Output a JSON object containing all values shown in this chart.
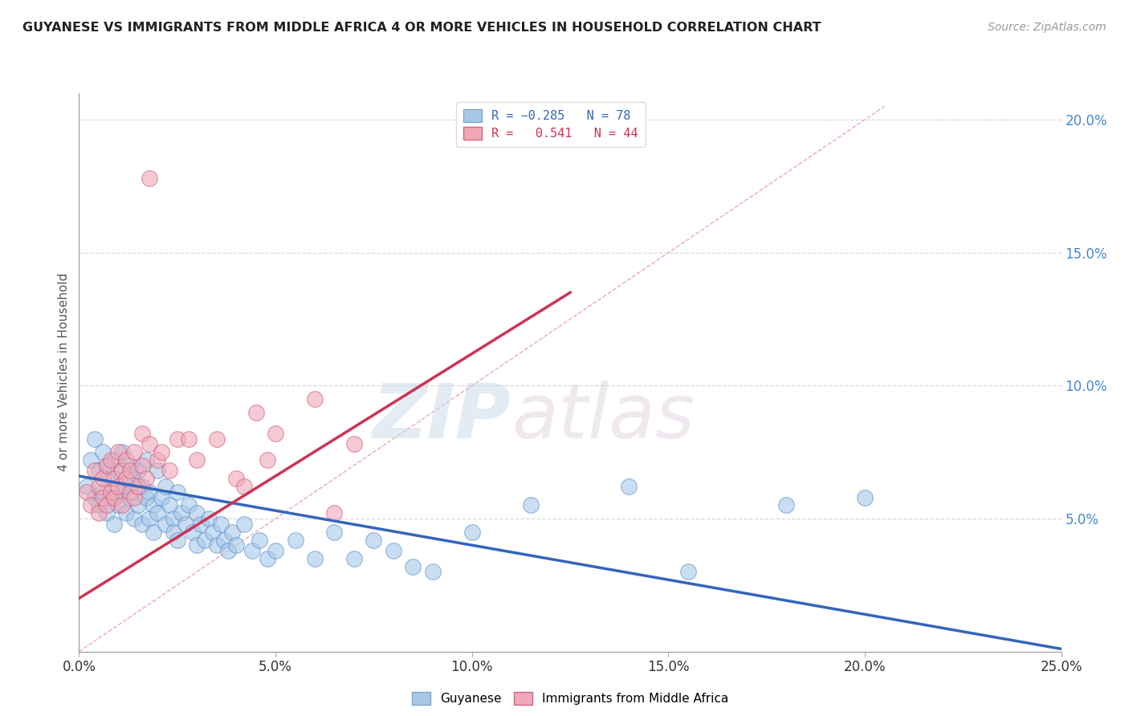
{
  "title": "GUYANESE VS IMMIGRANTS FROM MIDDLE AFRICA 4 OR MORE VEHICLES IN HOUSEHOLD CORRELATION CHART",
  "source": "Source: ZipAtlas.com",
  "ylabel": "4 or more Vehicles in Household",
  "xlim": [
    0.0,
    0.25
  ],
  "ylim": [
    0.0,
    0.21
  ],
  "xticks": [
    0.0,
    0.05,
    0.1,
    0.15,
    0.2,
    0.25
  ],
  "xtick_labels": [
    "0.0%",
    "5.0%",
    "10.0%",
    "15.0%",
    "20.0%",
    "25.0%"
  ],
  "yticks_right": [
    0.05,
    0.1,
    0.15,
    0.2
  ],
  "ytick_labels_right": [
    "5.0%",
    "10.0%",
    "15.0%",
    "20.0%"
  ],
  "background_color": "#ffffff",
  "grid_color": "#d0d0d0",
  "blue_color": "#a8c8e8",
  "pink_color": "#f0a8b8",
  "blue_edge_color": "#5588cc",
  "pink_edge_color": "#d05070",
  "blue_line_color": "#3366bb",
  "pink_line_color": "#cc3355",
  "diagonal_line_color": "#e8a0b0",
  "title_color": "#222222",
  "source_color": "#999999",
  "blue_line": {
    "x": [
      0.0,
      0.25
    ],
    "y": [
      0.066,
      0.001
    ]
  },
  "pink_line": {
    "x": [
      0.0,
      0.125
    ],
    "y": [
      0.02,
      0.135
    ]
  },
  "diagonal_line": {
    "x": [
      0.0,
      0.205
    ],
    "y": [
      0.0,
      0.205
    ]
  },
  "blue_scatter": [
    [
      0.002,
      0.062
    ],
    [
      0.003,
      0.072
    ],
    [
      0.004,
      0.058
    ],
    [
      0.004,
      0.08
    ],
    [
      0.005,
      0.068
    ],
    [
      0.005,
      0.055
    ],
    [
      0.006,
      0.075
    ],
    [
      0.006,
      0.06
    ],
    [
      0.007,
      0.07
    ],
    [
      0.007,
      0.052
    ],
    [
      0.008,
      0.065
    ],
    [
      0.008,
      0.058
    ],
    [
      0.009,
      0.072
    ],
    [
      0.009,
      0.048
    ],
    [
      0.01,
      0.068
    ],
    [
      0.01,
      0.055
    ],
    [
      0.011,
      0.06
    ],
    [
      0.011,
      0.075
    ],
    [
      0.012,
      0.062
    ],
    [
      0.012,
      0.052
    ],
    [
      0.013,
      0.058
    ],
    [
      0.013,
      0.07
    ],
    [
      0.014,
      0.065
    ],
    [
      0.014,
      0.05
    ],
    [
      0.015,
      0.068
    ],
    [
      0.015,
      0.055
    ],
    [
      0.016,
      0.062
    ],
    [
      0.016,
      0.048
    ],
    [
      0.017,
      0.058
    ],
    [
      0.017,
      0.072
    ],
    [
      0.018,
      0.06
    ],
    [
      0.018,
      0.05
    ],
    [
      0.019,
      0.055
    ],
    [
      0.019,
      0.045
    ],
    [
      0.02,
      0.068
    ],
    [
      0.02,
      0.052
    ],
    [
      0.021,
      0.058
    ],
    [
      0.022,
      0.048
    ],
    [
      0.022,
      0.062
    ],
    [
      0.023,
      0.055
    ],
    [
      0.024,
      0.05
    ],
    [
      0.024,
      0.045
    ],
    [
      0.025,
      0.06
    ],
    [
      0.025,
      0.042
    ],
    [
      0.026,
      0.052
    ],
    [
      0.027,
      0.048
    ],
    [
      0.028,
      0.055
    ],
    [
      0.029,
      0.045
    ],
    [
      0.03,
      0.052
    ],
    [
      0.03,
      0.04
    ],
    [
      0.031,
      0.048
    ],
    [
      0.032,
      0.042
    ],
    [
      0.033,
      0.05
    ],
    [
      0.034,
      0.045
    ],
    [
      0.035,
      0.04
    ],
    [
      0.036,
      0.048
    ],
    [
      0.037,
      0.042
    ],
    [
      0.038,
      0.038
    ],
    [
      0.039,
      0.045
    ],
    [
      0.04,
      0.04
    ],
    [
      0.042,
      0.048
    ],
    [
      0.044,
      0.038
    ],
    [
      0.046,
      0.042
    ],
    [
      0.048,
      0.035
    ],
    [
      0.05,
      0.038
    ],
    [
      0.055,
      0.042
    ],
    [
      0.06,
      0.035
    ],
    [
      0.065,
      0.045
    ],
    [
      0.07,
      0.035
    ],
    [
      0.075,
      0.042
    ],
    [
      0.08,
      0.038
    ],
    [
      0.085,
      0.032
    ],
    [
      0.09,
      0.03
    ],
    [
      0.1,
      0.045
    ],
    [
      0.115,
      0.055
    ],
    [
      0.14,
      0.062
    ],
    [
      0.155,
      0.03
    ],
    [
      0.18,
      0.055
    ],
    [
      0.2,
      0.058
    ]
  ],
  "pink_scatter": [
    [
      0.002,
      0.06
    ],
    [
      0.003,
      0.055
    ],
    [
      0.004,
      0.068
    ],
    [
      0.005,
      0.052
    ],
    [
      0.005,
      0.062
    ],
    [
      0.006,
      0.058
    ],
    [
      0.006,
      0.065
    ],
    [
      0.007,
      0.055
    ],
    [
      0.007,
      0.07
    ],
    [
      0.008,
      0.06
    ],
    [
      0.008,
      0.072
    ],
    [
      0.009,
      0.065
    ],
    [
      0.009,
      0.058
    ],
    [
      0.01,
      0.075
    ],
    [
      0.01,
      0.062
    ],
    [
      0.011,
      0.068
    ],
    [
      0.011,
      0.055
    ],
    [
      0.012,
      0.065
    ],
    [
      0.012,
      0.072
    ],
    [
      0.013,
      0.06
    ],
    [
      0.013,
      0.068
    ],
    [
      0.014,
      0.075
    ],
    [
      0.014,
      0.058
    ],
    [
      0.015,
      0.062
    ],
    [
      0.016,
      0.082
    ],
    [
      0.016,
      0.07
    ],
    [
      0.017,
      0.065
    ],
    [
      0.018,
      0.078
    ],
    [
      0.02,
      0.072
    ],
    [
      0.021,
      0.075
    ],
    [
      0.023,
      0.068
    ],
    [
      0.025,
      0.08
    ],
    [
      0.028,
      0.08
    ],
    [
      0.03,
      0.072
    ],
    [
      0.035,
      0.08
    ],
    [
      0.04,
      0.065
    ],
    [
      0.042,
      0.062
    ],
    [
      0.045,
      0.09
    ],
    [
      0.048,
      0.072
    ],
    [
      0.05,
      0.082
    ],
    [
      0.06,
      0.095
    ],
    [
      0.065,
      0.052
    ],
    [
      0.07,
      0.078
    ],
    [
      0.018,
      0.178
    ]
  ],
  "watermark_zip": "ZIP",
  "watermark_atlas": "atlas"
}
